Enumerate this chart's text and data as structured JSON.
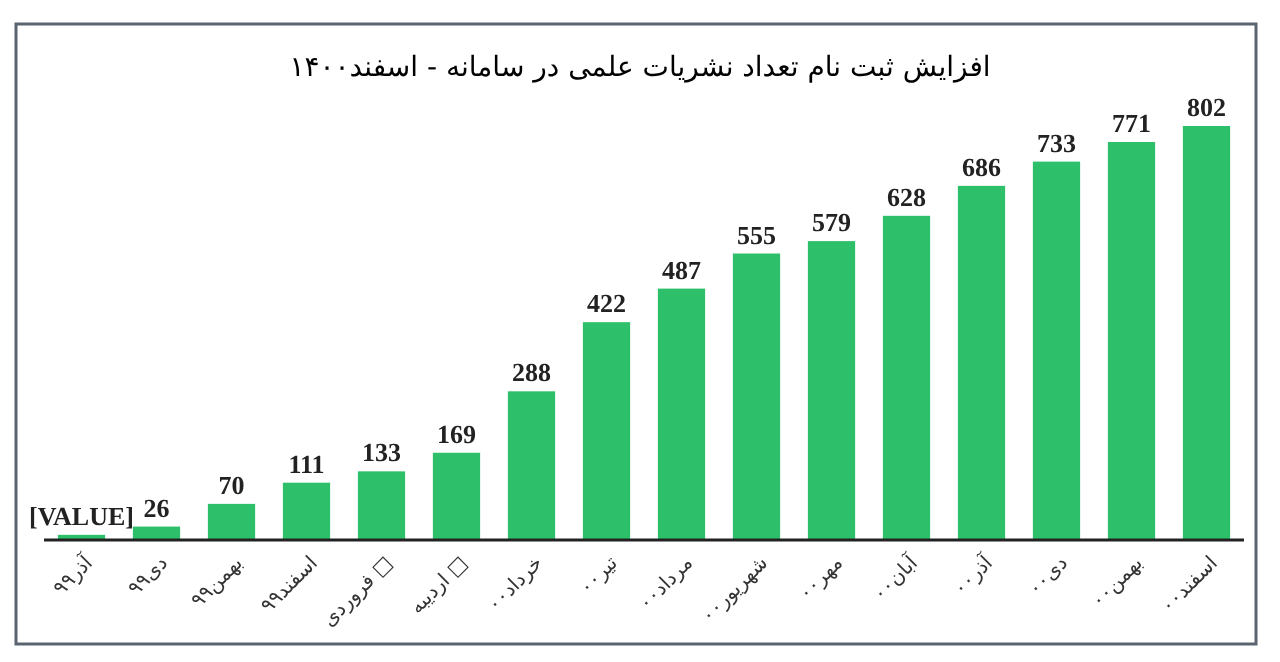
{
  "chart_data": {
    "type": "bar",
    "title": "افزایش ثبت نام تعداد نشریات علمی در سامانه - اسفند۱۴۰۰",
    "categories": [
      "آذر۹۹",
      "دی۹۹",
      "بهمن۹۹",
      "اسفند۹۹",
      "فروردی □",
      "اردیبه □",
      "خرداد۰۰",
      "تیر۰۰",
      "مرداد۰۰",
      "شهریور۰۰",
      "مهر۰۰",
      "آبان۰۰",
      "آذر۰۰",
      "دی۰۰",
      "بهمن۰۰",
      "اسفند۰۰"
    ],
    "values": [
      10,
      26,
      70,
      111,
      133,
      169,
      288,
      422,
      487,
      555,
      579,
      628,
      686,
      733,
      771,
      802
    ],
    "value_labels": [
      "[VALUE]",
      "26",
      "70",
      "111",
      "133",
      "169",
      "288",
      "422",
      "487",
      "555",
      "579",
      "628",
      "686",
      "733",
      "771",
      "802"
    ],
    "color": "#2ebf6a"
  }
}
